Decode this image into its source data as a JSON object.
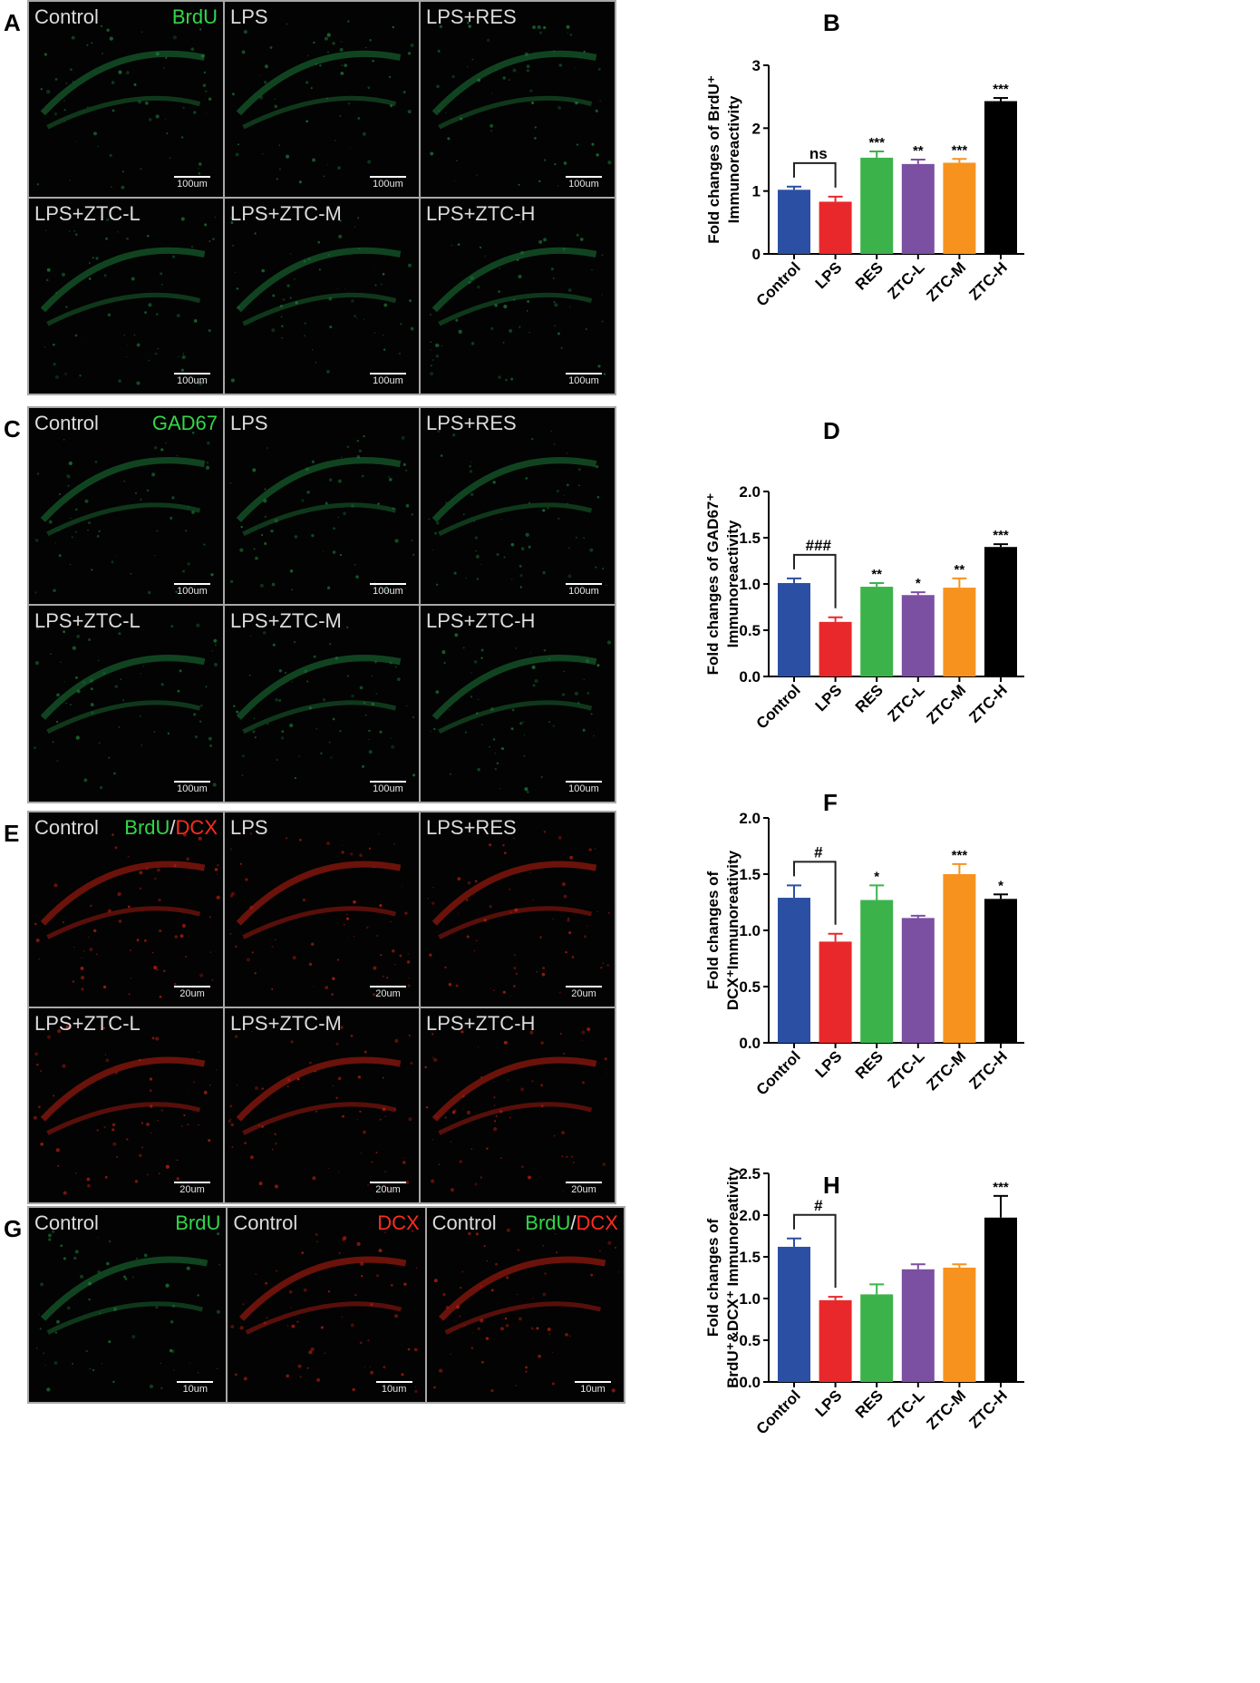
{
  "colors": {
    "Control": "#2b4fa3",
    "LPS": "#e8282b",
    "RES": "#3cb34a",
    "ZTC-L": "#7b4fa2",
    "ZTC-M": "#f7921e",
    "ZTC-H": "#000000",
    "green_marker": "#33d64a",
    "red_marker": "#ff2b1f",
    "axis": "#000000"
  },
  "images": {
    "A": {
      "label": "A",
      "panels": [
        {
          "title": "Control",
          "marker_green": "BrdU",
          "scale": "100um",
          "tissue": "green"
        },
        {
          "title": "LPS",
          "scale": "100um",
          "tissue": "green"
        },
        {
          "title": "LPS+RES",
          "scale": "100um",
          "tissue": "green"
        },
        {
          "title": "LPS+ZTC-L",
          "scale": "100um",
          "tissue": "green"
        },
        {
          "title": "LPS+ZTC-M",
          "scale": "100um",
          "tissue": "green"
        },
        {
          "title": "LPS+ZTC-H",
          "scale": "100um",
          "tissue": "green"
        }
      ]
    },
    "C": {
      "label": "C",
      "panels": [
        {
          "title": "Control",
          "marker_green": "GAD67",
          "scale": "100um",
          "tissue": "green"
        },
        {
          "title": "LPS",
          "scale": "100um",
          "tissue": "green"
        },
        {
          "title": "LPS+RES",
          "scale": "100um",
          "tissue": "green"
        },
        {
          "title": "LPS+ZTC-L",
          "scale": "100um",
          "tissue": "green"
        },
        {
          "title": "LPS+ZTC-M",
          "scale": "100um",
          "tissue": "green"
        },
        {
          "title": "LPS+ZTC-H",
          "scale": "100um",
          "tissue": "green"
        }
      ]
    },
    "E": {
      "label": "E",
      "panels": [
        {
          "title": "Control",
          "marker_green": "BrdU",
          "slash": "/",
          "marker_red": "DCX",
          "scale": "20um",
          "tissue": "red"
        },
        {
          "title": "LPS",
          "scale": "20um",
          "tissue": "red"
        },
        {
          "title": "LPS+RES",
          "scale": "20um",
          "tissue": "red"
        },
        {
          "title": "LPS+ZTC-L",
          "scale": "20um",
          "tissue": "red"
        },
        {
          "title": "LPS+ZTC-M",
          "scale": "20um",
          "tissue": "red"
        },
        {
          "title": "LPS+ZTC-H",
          "scale": "20um",
          "tissue": "red"
        }
      ]
    },
    "G": {
      "label": "G",
      "panels": [
        {
          "title": "Control",
          "marker_green": "BrdU",
          "scale": "10um",
          "tissue": "green"
        },
        {
          "title": "Control",
          "marker_red": "DCX",
          "scale": "10um",
          "tissue": "red"
        },
        {
          "title": "Control",
          "marker_green": "BrdU",
          "slash": "/",
          "marker_red": "DCX",
          "scale": "10um",
          "tissue": "red"
        }
      ]
    }
  },
  "chart_data": [
    {
      "panel": "B",
      "type": "bar",
      "ylabel": [
        "Fold changes of BrdU⁺",
        "Immunoreactivity"
      ],
      "categories": [
        "Control",
        "LPS",
        "RES",
        "ZTC-L",
        "ZTC-M",
        "ZTC-H"
      ],
      "values": [
        1.02,
        0.83,
        1.53,
        1.43,
        1.45,
        2.43
      ],
      "errors": [
        0.05,
        0.08,
        0.1,
        0.07,
        0.06,
        0.05
      ],
      "sig": [
        "",
        "",
        "***",
        "**",
        "***",
        "***"
      ],
      "bracket": {
        "label": "ns"
      },
      "ylim": [
        0,
        3
      ],
      "yticks": [
        "0",
        "1",
        "2",
        "3"
      ]
    },
    {
      "panel": "D",
      "type": "bar",
      "ylabel": [
        "Fold changes of GAD67⁺",
        "Immunoreactivity"
      ],
      "categories": [
        "Control",
        "LPS",
        "RES",
        "ZTC-L",
        "ZTC-M",
        "ZTC-H"
      ],
      "values": [
        1.01,
        0.59,
        0.97,
        0.88,
        0.96,
        1.4
      ],
      "errors": [
        0.05,
        0.05,
        0.04,
        0.03,
        0.1,
        0.03
      ],
      "sig": [
        "",
        "",
        "**",
        "*",
        "**",
        "***"
      ],
      "bracket": {
        "label": "###"
      },
      "ylim": [
        0,
        2
      ],
      "yticks": [
        "0.0",
        "0.5",
        "1.0",
        "1.5",
        "2.0"
      ]
    },
    {
      "panel": "F",
      "type": "bar",
      "ylabel": [
        "Fold changes of",
        "DCX⁺Immunoreativity"
      ],
      "categories": [
        "Control",
        "LPS",
        "RES",
        "ZTC-L",
        "ZTC-M",
        "ZTC-H"
      ],
      "values": [
        1.29,
        0.9,
        1.27,
        1.11,
        1.5,
        1.28
      ],
      "errors": [
        0.11,
        0.07,
        0.13,
        0.02,
        0.09,
        0.04
      ],
      "sig": [
        "",
        "",
        "*",
        "",
        "***",
        "*"
      ],
      "bracket": {
        "label": "#"
      },
      "ylim": [
        0,
        2
      ],
      "yticks": [
        "0.0",
        "0.5",
        "1.0",
        "1.5",
        "2.0"
      ]
    },
    {
      "panel": "H",
      "type": "bar",
      "ylabel": [
        "Fold changes of",
        "BrdU⁺&DCX⁺ Immunoreativity"
      ],
      "categories": [
        "Control",
        "LPS",
        "RES",
        "ZTC-L",
        "ZTC-M",
        "ZTC-H"
      ],
      "values": [
        1.62,
        0.98,
        1.05,
        1.35,
        1.37,
        1.97
      ],
      "errors": [
        0.1,
        0.04,
        0.12,
        0.06,
        0.04,
        0.26
      ],
      "sig": [
        "",
        "",
        "",
        "",
        "",
        "***"
      ],
      "bracket": {
        "label": "#"
      },
      "ylim": [
        0,
        2.5
      ],
      "yticks": [
        "0.0",
        "0.5",
        "1.0",
        "1.5",
        "2.0",
        "2.5"
      ]
    }
  ]
}
